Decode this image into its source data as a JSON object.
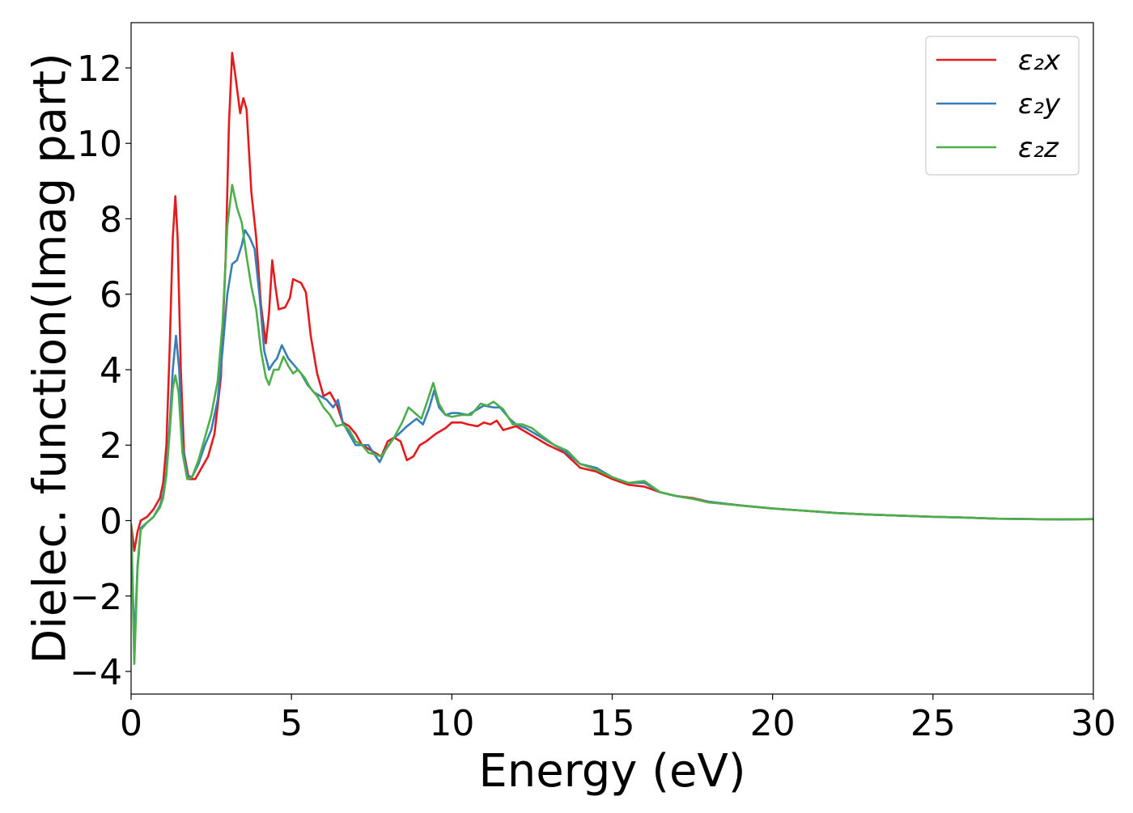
{
  "chart_data": {
    "type": "line",
    "xlabel": "Energy (eV)",
    "ylabel": "Dielec. function(Imag part)",
    "xlim": [
      0,
      30
    ],
    "ylim": [
      -4.6,
      13.2
    ],
    "xticks": [
      0,
      5,
      10,
      15,
      20,
      25,
      30
    ],
    "yticks": [
      -4,
      -2,
      0,
      2,
      4,
      6,
      8,
      10,
      12
    ],
    "xtick_labels": [
      "0",
      "5",
      "10",
      "15",
      "20",
      "25",
      "30"
    ],
    "ytick_labels": [
      "−4",
      "−2",
      "0",
      "2",
      "4",
      "6",
      "8",
      "10",
      "12"
    ],
    "grid": false,
    "legend_position": "upper right",
    "series": [
      {
        "name": "ε₂x",
        "color": "#e41a1c",
        "points": [
          [
            0,
            -0.1
          ],
          [
            0.1,
            -0.8
          ],
          [
            0.2,
            -0.3
          ],
          [
            0.3,
            0.0
          ],
          [
            0.5,
            0.1
          ],
          [
            0.7,
            0.3
          ],
          [
            0.9,
            0.6
          ],
          [
            1.0,
            1.0
          ],
          [
            1.1,
            2.0
          ],
          [
            1.2,
            4.5
          ],
          [
            1.3,
            7.5
          ],
          [
            1.38,
            8.6
          ],
          [
            1.45,
            7.5
          ],
          [
            1.55,
            4.0
          ],
          [
            1.65,
            1.8
          ],
          [
            1.8,
            1.1
          ],
          [
            2.0,
            1.1
          ],
          [
            2.2,
            1.4
          ],
          [
            2.4,
            1.7
          ],
          [
            2.6,
            2.3
          ],
          [
            2.8,
            3.8
          ],
          [
            2.95,
            7.0
          ],
          [
            3.05,
            10.5
          ],
          [
            3.15,
            12.4
          ],
          [
            3.25,
            11.8
          ],
          [
            3.4,
            10.8
          ],
          [
            3.5,
            11.2
          ],
          [
            3.6,
            10.9
          ],
          [
            3.75,
            8.7
          ],
          [
            3.9,
            7.5
          ],
          [
            4.05,
            5.7
          ],
          [
            4.2,
            4.7
          ],
          [
            4.3,
            5.5
          ],
          [
            4.4,
            6.9
          ],
          [
            4.5,
            6.2
          ],
          [
            4.6,
            5.6
          ],
          [
            4.8,
            5.65
          ],
          [
            4.95,
            5.9
          ],
          [
            5.05,
            6.4
          ],
          [
            5.3,
            6.3
          ],
          [
            5.45,
            6.05
          ],
          [
            5.6,
            4.9
          ],
          [
            5.8,
            3.9
          ],
          [
            6.0,
            3.3
          ],
          [
            6.2,
            3.4
          ],
          [
            6.4,
            3.1
          ],
          [
            6.6,
            2.6
          ],
          [
            6.8,
            2.5
          ],
          [
            7.0,
            2.3
          ],
          [
            7.2,
            2.0
          ],
          [
            7.4,
            1.9
          ],
          [
            7.6,
            1.8
          ],
          [
            7.8,
            1.7
          ],
          [
            8.0,
            2.1
          ],
          [
            8.2,
            2.2
          ],
          [
            8.4,
            2.1
          ],
          [
            8.6,
            1.6
          ],
          [
            8.8,
            1.7
          ],
          [
            9.0,
            2.0
          ],
          [
            9.2,
            2.1
          ],
          [
            9.5,
            2.3
          ],
          [
            9.8,
            2.45
          ],
          [
            10.0,
            2.6
          ],
          [
            10.3,
            2.6
          ],
          [
            10.5,
            2.55
          ],
          [
            10.8,
            2.5
          ],
          [
            11.0,
            2.6
          ],
          [
            11.2,
            2.55
          ],
          [
            11.4,
            2.65
          ],
          [
            11.6,
            2.4
          ],
          [
            11.8,
            2.45
          ],
          [
            12.0,
            2.5
          ],
          [
            12.3,
            2.35
          ],
          [
            12.6,
            2.2
          ],
          [
            13.0,
            2.0
          ],
          [
            13.5,
            1.8
          ],
          [
            14.0,
            1.4
          ],
          [
            14.5,
            1.3
          ],
          [
            15.0,
            1.1
          ],
          [
            15.5,
            0.95
          ],
          [
            16.0,
            0.9
          ],
          [
            16.5,
            0.75
          ],
          [
            17.0,
            0.65
          ],
          [
            17.5,
            0.6
          ],
          [
            18.0,
            0.5
          ],
          [
            19.0,
            0.4
          ],
          [
            20.0,
            0.32
          ],
          [
            21.0,
            0.26
          ],
          [
            22.0,
            0.2
          ],
          [
            23.0,
            0.16
          ],
          [
            24.0,
            0.13
          ],
          [
            25.0,
            0.1
          ],
          [
            26.0,
            0.08
          ],
          [
            27.0,
            0.05
          ],
          [
            28.0,
            0.04
          ],
          [
            29.0,
            0.03
          ],
          [
            30.0,
            0.04
          ]
        ]
      },
      {
        "name": "ε₂y",
        "color": "#377eb8",
        "points": [
          [
            0,
            -0.1
          ],
          [
            0.1,
            -3.3
          ],
          [
            0.2,
            -1.2
          ],
          [
            0.3,
            -0.2
          ],
          [
            0.5,
            -0.05
          ],
          [
            0.7,
            0.1
          ],
          [
            0.9,
            0.4
          ],
          [
            1.0,
            0.7
          ],
          [
            1.1,
            1.3
          ],
          [
            1.2,
            2.5
          ],
          [
            1.3,
            4.0
          ],
          [
            1.4,
            4.9
          ],
          [
            1.5,
            4.0
          ],
          [
            1.6,
            2.0
          ],
          [
            1.75,
            1.2
          ],
          [
            1.9,
            1.15
          ],
          [
            2.1,
            1.5
          ],
          [
            2.3,
            2.0
          ],
          [
            2.5,
            2.4
          ],
          [
            2.7,
            3.2
          ],
          [
            2.85,
            4.5
          ],
          [
            3.0,
            6.0
          ],
          [
            3.15,
            6.8
          ],
          [
            3.3,
            6.9
          ],
          [
            3.45,
            7.3
          ],
          [
            3.55,
            7.7
          ],
          [
            3.7,
            7.5
          ],
          [
            3.85,
            7.2
          ],
          [
            4.0,
            6.0
          ],
          [
            4.15,
            4.5
          ],
          [
            4.3,
            4.0
          ],
          [
            4.45,
            4.2
          ],
          [
            4.55,
            4.3
          ],
          [
            4.7,
            4.65
          ],
          [
            4.9,
            4.3
          ],
          [
            5.1,
            4.1
          ],
          [
            5.3,
            3.9
          ],
          [
            5.5,
            3.6
          ],
          [
            5.7,
            3.4
          ],
          [
            5.9,
            3.3
          ],
          [
            6.1,
            3.2
          ],
          [
            6.3,
            3.0
          ],
          [
            6.45,
            3.2
          ],
          [
            6.6,
            2.6
          ],
          [
            6.8,
            2.3
          ],
          [
            7.0,
            2.0
          ],
          [
            7.2,
            2.0
          ],
          [
            7.4,
            2.0
          ],
          [
            7.55,
            1.8
          ],
          [
            7.75,
            1.55
          ],
          [
            7.95,
            1.9
          ],
          [
            8.15,
            2.15
          ],
          [
            8.35,
            2.3
          ],
          [
            8.6,
            2.5
          ],
          [
            8.9,
            2.7
          ],
          [
            9.1,
            2.55
          ],
          [
            9.3,
            3.0
          ],
          [
            9.45,
            3.45
          ],
          [
            9.6,
            3.0
          ],
          [
            9.8,
            2.8
          ],
          [
            10.0,
            2.85
          ],
          [
            10.2,
            2.85
          ],
          [
            10.5,
            2.8
          ],
          [
            10.8,
            2.95
          ],
          [
            11.0,
            3.05
          ],
          [
            11.3,
            3.0
          ],
          [
            11.5,
            3.0
          ],
          [
            11.8,
            2.7
          ],
          [
            12.0,
            2.55
          ],
          [
            12.3,
            2.45
          ],
          [
            12.6,
            2.3
          ],
          [
            13.0,
            2.1
          ],
          [
            13.5,
            1.85
          ],
          [
            14.0,
            1.5
          ],
          [
            14.5,
            1.4
          ],
          [
            15.0,
            1.15
          ],
          [
            15.5,
            1.0
          ],
          [
            16.0,
            1.0
          ],
          [
            16.5,
            0.75
          ],
          [
            17.0,
            0.65
          ],
          [
            17.5,
            0.58
          ],
          [
            18.0,
            0.5
          ],
          [
            19.0,
            0.4
          ],
          [
            20.0,
            0.32
          ],
          [
            21.0,
            0.26
          ],
          [
            22.0,
            0.2
          ],
          [
            23.0,
            0.16
          ],
          [
            24.0,
            0.13
          ],
          [
            25.0,
            0.1
          ],
          [
            26.0,
            0.08
          ],
          [
            27.0,
            0.05
          ],
          [
            28.0,
            0.04
          ],
          [
            29.0,
            0.03
          ],
          [
            30.0,
            0.04
          ]
        ]
      },
      {
        "name": "ε₂z",
        "color": "#4daf4a",
        "points": [
          [
            0,
            -0.1
          ],
          [
            0.1,
            -3.8
          ],
          [
            0.2,
            -1.3
          ],
          [
            0.3,
            -0.25
          ],
          [
            0.5,
            -0.05
          ],
          [
            0.7,
            0.1
          ],
          [
            0.9,
            0.35
          ],
          [
            1.0,
            0.6
          ],
          [
            1.1,
            1.2
          ],
          [
            1.2,
            2.3
          ],
          [
            1.3,
            3.5
          ],
          [
            1.38,
            3.85
          ],
          [
            1.48,
            3.4
          ],
          [
            1.6,
            1.8
          ],
          [
            1.75,
            1.1
          ],
          [
            1.9,
            1.15
          ],
          [
            2.1,
            1.6
          ],
          [
            2.3,
            2.2
          ],
          [
            2.5,
            2.8
          ],
          [
            2.7,
            3.7
          ],
          [
            2.85,
            5.2
          ],
          [
            3.0,
            7.8
          ],
          [
            3.15,
            8.9
          ],
          [
            3.3,
            8.3
          ],
          [
            3.45,
            7.9
          ],
          [
            3.6,
            7.0
          ],
          [
            3.75,
            6.2
          ],
          [
            3.9,
            5.6
          ],
          [
            4.05,
            4.5
          ],
          [
            4.2,
            3.8
          ],
          [
            4.3,
            3.6
          ],
          [
            4.45,
            4.0
          ],
          [
            4.6,
            4.0
          ],
          [
            4.75,
            4.35
          ],
          [
            4.9,
            4.1
          ],
          [
            5.05,
            3.9
          ],
          [
            5.2,
            4.0
          ],
          [
            5.4,
            3.8
          ],
          [
            5.6,
            3.5
          ],
          [
            5.8,
            3.3
          ],
          [
            6.0,
            3.0
          ],
          [
            6.2,
            2.8
          ],
          [
            6.4,
            2.5
          ],
          [
            6.6,
            2.55
          ],
          [
            6.8,
            2.4
          ],
          [
            7.0,
            2.1
          ],
          [
            7.2,
            2.0
          ],
          [
            7.4,
            1.8
          ],
          [
            7.6,
            1.75
          ],
          [
            7.8,
            1.7
          ],
          [
            8.0,
            1.95
          ],
          [
            8.2,
            2.2
          ],
          [
            8.45,
            2.6
          ],
          [
            8.65,
            3.0
          ],
          [
            8.85,
            2.85
          ],
          [
            9.05,
            2.7
          ],
          [
            9.25,
            3.2
          ],
          [
            9.42,
            3.65
          ],
          [
            9.6,
            3.1
          ],
          [
            9.8,
            2.8
          ],
          [
            10.0,
            2.75
          ],
          [
            10.3,
            2.8
          ],
          [
            10.6,
            2.8
          ],
          [
            10.9,
            3.1
          ],
          [
            11.1,
            3.05
          ],
          [
            11.3,
            3.15
          ],
          [
            11.6,
            2.95
          ],
          [
            11.9,
            2.55
          ],
          [
            12.2,
            2.55
          ],
          [
            12.5,
            2.45
          ],
          [
            12.8,
            2.25
          ],
          [
            13.2,
            2.0
          ],
          [
            13.6,
            1.85
          ],
          [
            14.0,
            1.5
          ],
          [
            14.5,
            1.35
          ],
          [
            15.0,
            1.15
          ],
          [
            15.5,
            1.0
          ],
          [
            16.0,
            1.05
          ],
          [
            16.5,
            0.75
          ],
          [
            17.0,
            0.65
          ],
          [
            17.5,
            0.58
          ],
          [
            18.0,
            0.48
          ],
          [
            19.0,
            0.4
          ],
          [
            20.0,
            0.32
          ],
          [
            21.0,
            0.26
          ],
          [
            22.0,
            0.2
          ],
          [
            23.0,
            0.16
          ],
          [
            24.0,
            0.13
          ],
          [
            25.0,
            0.1
          ],
          [
            26.0,
            0.08
          ],
          [
            27.0,
            0.05
          ],
          [
            28.0,
            0.04
          ],
          [
            29.0,
            0.03
          ],
          [
            30.0,
            0.04
          ]
        ]
      }
    ]
  }
}
